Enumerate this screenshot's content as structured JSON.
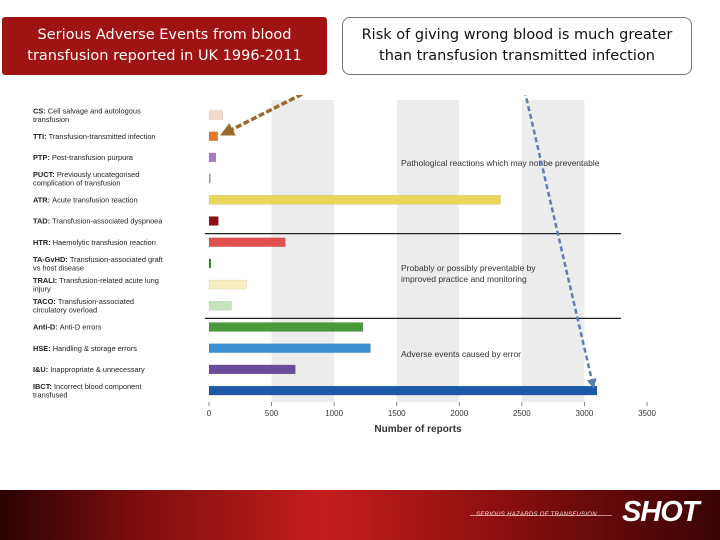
{
  "slide": {
    "title_lines": [
      "Serious Adverse Events from blood",
      "transfusion reported in UK 1996-2011"
    ],
    "callout_lines": [
      "Risk of giving wrong blood is much greater",
      "than transfusion transmitted infection"
    ]
  },
  "footer": {
    "tagline": "SERIOUS HAZARDS OF TRANSFUSION",
    "logo": "SHOT"
  },
  "chart_data": {
    "type": "bar",
    "orientation": "horizontal",
    "xlabel": "Number of reports",
    "xlim": [
      0,
      3500
    ],
    "xticks": [
      0,
      500,
      1000,
      1500,
      2000,
      2500,
      3000,
      3500
    ],
    "categories": [
      {
        "code": "CS:",
        "desc": "Cell salvage and autologous transfusion",
        "value": 110,
        "color": "#f2d9c9"
      },
      {
        "code": "TTI:",
        "desc": "Transfusion-transmitted infection",
        "value": 70,
        "color": "#e8782a"
      },
      {
        "code": "PTP:",
        "desc": "Post-transfusion purpura",
        "value": 55,
        "color": "#a77cc4"
      },
      {
        "code": "PUCT:",
        "desc": "Previously uncategorised complication of transfusion",
        "value": 10,
        "color": "#9aa0a6"
      },
      {
        "code": "ATR:",
        "desc": "Acute transfusion reaction",
        "value": 2330,
        "color": "#ecd65a"
      },
      {
        "code": "TAD:",
        "desc": "Transfusion-associated dyspnoea",
        "value": 75,
        "color": "#8f1111"
      },
      {
        "code": "HTR:",
        "desc": "Haemolytic transfusion reaction",
        "value": 610,
        "color": "#e05050"
      },
      {
        "code": "TA-GvHD:",
        "desc": "Transfusion-associated graft vs host disease",
        "value": 15,
        "color": "#2c7a2c"
      },
      {
        "code": "TRALI:",
        "desc": "Transfusion-related acute lung injury",
        "value": 300,
        "color": "#f7efc2"
      },
      {
        "code": "TACO:",
        "desc": "Transfusion-associated circulatory overload",
        "value": 180,
        "color": "#c6e3c0"
      },
      {
        "code": "Anti-D:",
        "desc": "Anti-D errors",
        "value": 1230,
        "color": "#4a9a3c"
      },
      {
        "code": "HSE:",
        "desc": "Handling & storage errors",
        "value": 1290,
        "color": "#3b8fd3"
      },
      {
        "code": "I&U:",
        "desc": "Inappropriate & unnecessary",
        "value": 690,
        "color": "#6a4c9c"
      },
      {
        "code": "IBCT:",
        "desc": "Incorrect blood component transfused",
        "value": 3100,
        "color": "#1c5aa8"
      }
    ],
    "groups": [
      {
        "label_lines": [
          "Pathological reactions which may not be preventable"
        ],
        "rows": [
          0,
          1,
          2,
          3,
          4,
          5,
          6
        ]
      },
      {
        "label_lines": [
          "Probably or possibly preventable by",
          "improved practice and monitoring"
        ],
        "rows": [
          7,
          8,
          9
        ]
      },
      {
        "label_lines": [
          "Adverse events caused by error"
        ],
        "rows": [
          10,
          11,
          12,
          13
        ]
      }
    ],
    "grid": "alternating vertical bands"
  }
}
